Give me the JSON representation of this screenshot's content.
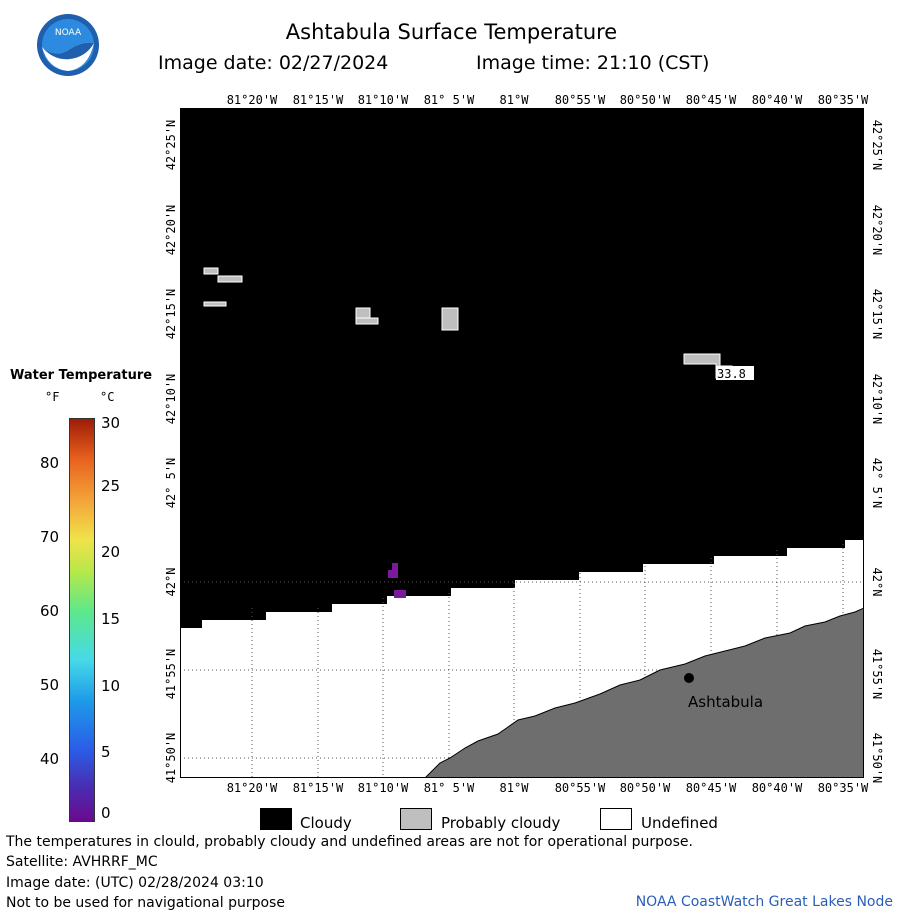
{
  "header": {
    "title": "Ashtabula Surface Temperature",
    "image_date_label": "Image date: 02/27/2024",
    "image_time_label": "Image time: 21:10 (CST)"
  },
  "logo": {
    "text": "NOAA",
    "colors": {
      "ring": "#1f5fae",
      "sky": "#2c8be0",
      "bird": "#ffffff"
    }
  },
  "map": {
    "lon_labels": [
      "81°20'W",
      "81°15'W",
      "81°10'W",
      "81° 5'W",
      "81°W",
      "80°55'W",
      "80°50'W",
      "80°45'W",
      "80°40'W",
      "80°35'W"
    ],
    "lat_labels": [
      "42°25'N",
      "42°20'N",
      "42°15'N",
      "42°10'N",
      "42° 5'N",
      "42°N",
      "41°55'N",
      "41°50'N"
    ],
    "sample_value": "33.8",
    "city": "Ashtabula",
    "colors": {
      "cloudy": "#000000",
      "probably_cloudy": "#bfbfbf",
      "undefined": "#ffffff",
      "land": "#6e6e6e",
      "purple_water": "#7a1a9a"
    }
  },
  "legend": {
    "title": "Water Temperature",
    "unit_f": "°F",
    "unit_c": "°C",
    "f_ticks": [
      "80",
      "70",
      "60",
      "50",
      "40"
    ],
    "c_ticks": [
      "30",
      "25",
      "20",
      "15",
      "10",
      "5",
      "0"
    ]
  },
  "key": {
    "cloudy": "Cloudy",
    "probably_cloudy": "Probably cloudy",
    "undefined": "Undefined"
  },
  "footer": {
    "note": "The temperatures in clould, probably cloudy and undefined areas are not for operational purpose.",
    "satellite": "Satellite: AVHRRF_MC",
    "utc_date": "Image date: (UTC) 02/28/2024  03:10",
    "nav_warning": "Not to be used for navigational purpose",
    "credit": "NOAA CoastWatch Great Lakes Node"
  }
}
